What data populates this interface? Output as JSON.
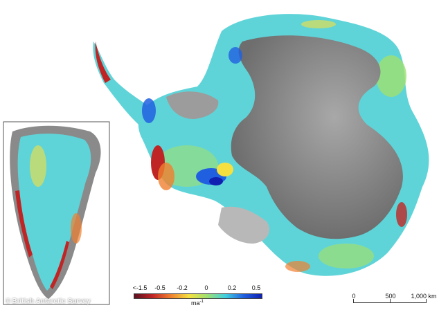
{
  "colorbar": {
    "ticks": [
      "<-1.5",
      "-0.5",
      "-0.2",
      "0",
      "0.2",
      "0.5"
    ],
    "unit_base": "ma",
    "unit_exp": "-1",
    "colors": [
      "#5a1020",
      "#c02525",
      "#f08030",
      "#f5e040",
      "#9fe070",
      "#40d0e0",
      "#2060e0",
      "#1020b0"
    ]
  },
  "scale": {
    "labels": [
      "0",
      "500",
      "1,000 km"
    ]
  },
  "credit": {
    "icon": "copyright-icon",
    "symbol": "©",
    "text": "British Antarctic Survey"
  },
  "palette": {
    "land_gray": "#8a8a8a",
    "inset_border": "#555555",
    "ice_shelf": "#b8b8b8"
  }
}
